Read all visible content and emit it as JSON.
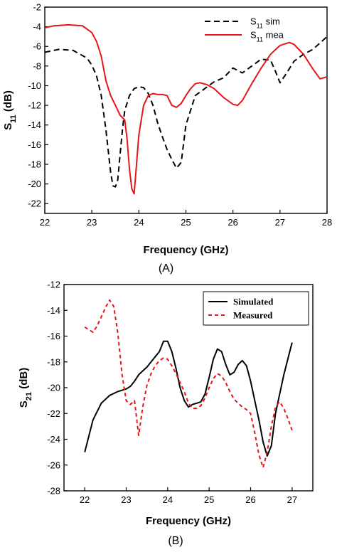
{
  "chart_data": [
    {
      "type": "line",
      "panel_label": "(A)",
      "xlabel": "Frequency (GHz)",
      "ylabel_main": "S",
      "ylabel_sub": "11",
      "ylabel_unit": " (dB)",
      "xlim": [
        22,
        28
      ],
      "ylim": [
        -23,
        -2
      ],
      "xticks": [
        22,
        23,
        24,
        25,
        26,
        27,
        28
      ],
      "yticks": [
        -2,
        -4,
        -6,
        -8,
        -10,
        -12,
        -14,
        -16,
        -18,
        -20,
        -22
      ],
      "legend_position": "top-right",
      "series": [
        {
          "legend_main": "S",
          "legend_sub": "11",
          "legend_rest": " sim",
          "color": "#000000",
          "dash": "8,5",
          "x": [
            22.0,
            22.3,
            22.6,
            22.9,
            23.0,
            23.1,
            23.2,
            23.3,
            23.4,
            23.45,
            23.5,
            23.55,
            23.6,
            23.65,
            23.7,
            23.8,
            23.9,
            24.0,
            24.1,
            24.2,
            24.3,
            24.4,
            24.5,
            24.6,
            24.7,
            24.8,
            24.9,
            25.0,
            25.2,
            25.4,
            25.6,
            25.8,
            26.0,
            26.2,
            26.4,
            26.6,
            26.8,
            26.9,
            27.0,
            27.1,
            27.3,
            27.5,
            27.7,
            28.0
          ],
          "y": [
            -6.6,
            -6.3,
            -6.4,
            -7.2,
            -7.9,
            -9.0,
            -11.0,
            -14.5,
            -18.8,
            -20.2,
            -20.3,
            -19.6,
            -17.0,
            -14.5,
            -12.5,
            -11.0,
            -10.3,
            -10.1,
            -10.2,
            -10.8,
            -12.0,
            -13.8,
            -15.2,
            -16.5,
            -17.5,
            -18.4,
            -17.8,
            -14.0,
            -11.0,
            -10.3,
            -9.6,
            -9.2,
            -8.2,
            -8.7,
            -8.0,
            -7.3,
            -7.4,
            -8.5,
            -9.7,
            -9.0,
            -7.5,
            -6.8,
            -6.3,
            -5.0
          ]
        },
        {
          "legend_main": "S",
          "legend_sub": "11",
          "legend_rest": " mea",
          "color": "#e8141b",
          "dash": "",
          "x": [
            22.0,
            22.2,
            22.5,
            22.8,
            23.0,
            23.1,
            23.2,
            23.3,
            23.4,
            23.5,
            23.6,
            23.7,
            23.75,
            23.8,
            23.85,
            23.9,
            23.95,
            24.0,
            24.1,
            24.2,
            24.3,
            24.4,
            24.5,
            24.6,
            24.7,
            24.8,
            24.9,
            25.0,
            25.1,
            25.2,
            25.3,
            25.45,
            25.6,
            25.8,
            26.0,
            26.1,
            26.2,
            26.4,
            26.6,
            26.8,
            27.0,
            27.2,
            27.3,
            27.5,
            27.7,
            27.85,
            28.0
          ],
          "y": [
            -4.1,
            -3.9,
            -3.8,
            -3.9,
            -4.6,
            -5.5,
            -7.0,
            -9.5,
            -11.0,
            -12.0,
            -13.0,
            -13.5,
            -15.5,
            -18.5,
            -20.5,
            -21.0,
            -18.0,
            -15.0,
            -12.0,
            -11.0,
            -10.8,
            -10.9,
            -10.9,
            -11.0,
            -12.0,
            -12.2,
            -11.8,
            -11.0,
            -10.3,
            -9.8,
            -9.7,
            -9.9,
            -10.3,
            -11.2,
            -11.9,
            -12.0,
            -11.5,
            -9.8,
            -8.2,
            -6.8,
            -5.9,
            -5.6,
            -5.8,
            -6.8,
            -8.3,
            -9.3,
            -9.1
          ]
        }
      ]
    },
    {
      "type": "line",
      "panel_label": "(B)",
      "xlabel": "Frequency (GHz)",
      "ylabel_main": "S",
      "ylabel_sub": "21",
      "ylabel_unit": " (dB)",
      "xlim": [
        21.5,
        27.5
      ],
      "ylim": [
        -28,
        -12
      ],
      "xticks": [
        22,
        23,
        24,
        25,
        26,
        27
      ],
      "yticks": [
        -12,
        -14,
        -16,
        -18,
        -20,
        -22,
        -24,
        -26,
        -28
      ],
      "legend_position": "top-right",
      "series": [
        {
          "legend_main": "Simulated",
          "legend_sub": "",
          "legend_rest": "",
          "color": "#000000",
          "dash": "",
          "x": [
            22.0,
            22.2,
            22.4,
            22.6,
            22.8,
            23.0,
            23.1,
            23.2,
            23.3,
            23.4,
            23.5,
            23.6,
            23.7,
            23.8,
            23.9,
            24.0,
            24.1,
            24.2,
            24.3,
            24.4,
            24.5,
            24.6,
            24.7,
            24.8,
            24.9,
            25.0,
            25.1,
            25.2,
            25.3,
            25.4,
            25.5,
            25.6,
            25.7,
            25.8,
            25.9,
            26.0,
            26.1,
            26.2,
            26.3,
            26.4,
            26.5,
            26.6,
            26.8,
            27.0
          ],
          "y": [
            -25.0,
            -22.5,
            -21.2,
            -20.6,
            -20.3,
            -20.1,
            -19.9,
            -19.5,
            -19.0,
            -18.7,
            -18.4,
            -18.0,
            -17.6,
            -17.2,
            -16.4,
            -16.4,
            -17.2,
            -18.5,
            -20.0,
            -21.0,
            -21.5,
            -21.3,
            -21.2,
            -21.1,
            -20.5,
            -19.2,
            -17.8,
            -17.0,
            -17.2,
            -18.2,
            -19.0,
            -18.8,
            -18.2,
            -17.9,
            -18.3,
            -19.5,
            -21.0,
            -22.5,
            -24.2,
            -25.3,
            -24.5,
            -22.0,
            -19.0,
            -16.5
          ]
        },
        {
          "legend_main": "Measured",
          "legend_sub": "",
          "legend_rest": "",
          "color": "#e8141b",
          "dash": "5,4",
          "x": [
            22.0,
            22.1,
            22.2,
            22.3,
            22.4,
            22.5,
            22.6,
            22.7,
            22.8,
            22.9,
            23.0,
            23.1,
            23.2,
            23.3,
            23.4,
            23.5,
            23.6,
            23.7,
            23.8,
            23.9,
            24.0,
            24.1,
            24.2,
            24.3,
            24.4,
            24.5,
            24.6,
            24.7,
            24.8,
            24.9,
            25.0,
            25.1,
            25.2,
            25.3,
            25.4,
            25.5,
            25.6,
            25.7,
            25.8,
            25.9,
            26.0,
            26.1,
            26.2,
            26.3,
            26.4,
            26.5,
            26.6,
            26.7,
            26.8,
            26.9,
            27.0
          ],
          "y": [
            -15.3,
            -15.5,
            -15.7,
            -15.2,
            -14.5,
            -13.8,
            -13.2,
            -13.7,
            -15.8,
            -19.0,
            -21.0,
            -21.3,
            -21.0,
            -23.7,
            -21.5,
            -19.8,
            -18.9,
            -18.3,
            -17.9,
            -17.7,
            -17.8,
            -18.3,
            -18.9,
            -19.6,
            -20.3,
            -21.2,
            -21.6,
            -21.6,
            -21.4,
            -20.8,
            -20.0,
            -19.3,
            -18.9,
            -19.1,
            -19.6,
            -20.3,
            -20.9,
            -21.2,
            -21.5,
            -21.7,
            -22.0,
            -23.5,
            -25.2,
            -26.2,
            -25.0,
            -23.0,
            -21.5,
            -21.1,
            -21.6,
            -22.4,
            -23.3
          ]
        }
      ]
    }
  ]
}
